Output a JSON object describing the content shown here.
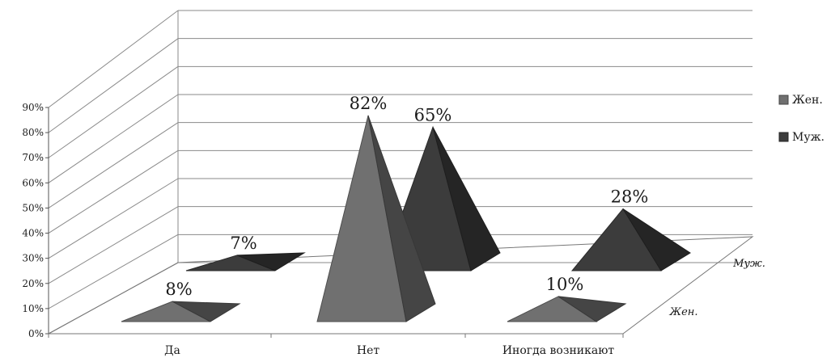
{
  "chart_data": {
    "type": "bar",
    "style": "3d-pyramid",
    "categories": [
      "Да",
      "Нет",
      "Иногда возникают"
    ],
    "series": [
      {
        "name": "Жен.",
        "values": [
          8,
          82,
          10
        ],
        "labels": [
          "8%",
          "82%",
          "10%"
        ],
        "color": "#707070"
      },
      {
        "name": "Муж.",
        "values": [
          7,
          65,
          28
        ],
        "labels": [
          "7%",
          "65%",
          "28%"
        ],
        "color": "#3c3c3c"
      }
    ],
    "depth_labels": [
      "Жен.",
      "Муж."
    ],
    "yticks": [
      "0%",
      "10%",
      "20%",
      "30%",
      "40%",
      "50%",
      "60%",
      "70%",
      "80%",
      "90%"
    ],
    "ylim": [
      0,
      90
    ],
    "grid": true,
    "legend": "right"
  }
}
